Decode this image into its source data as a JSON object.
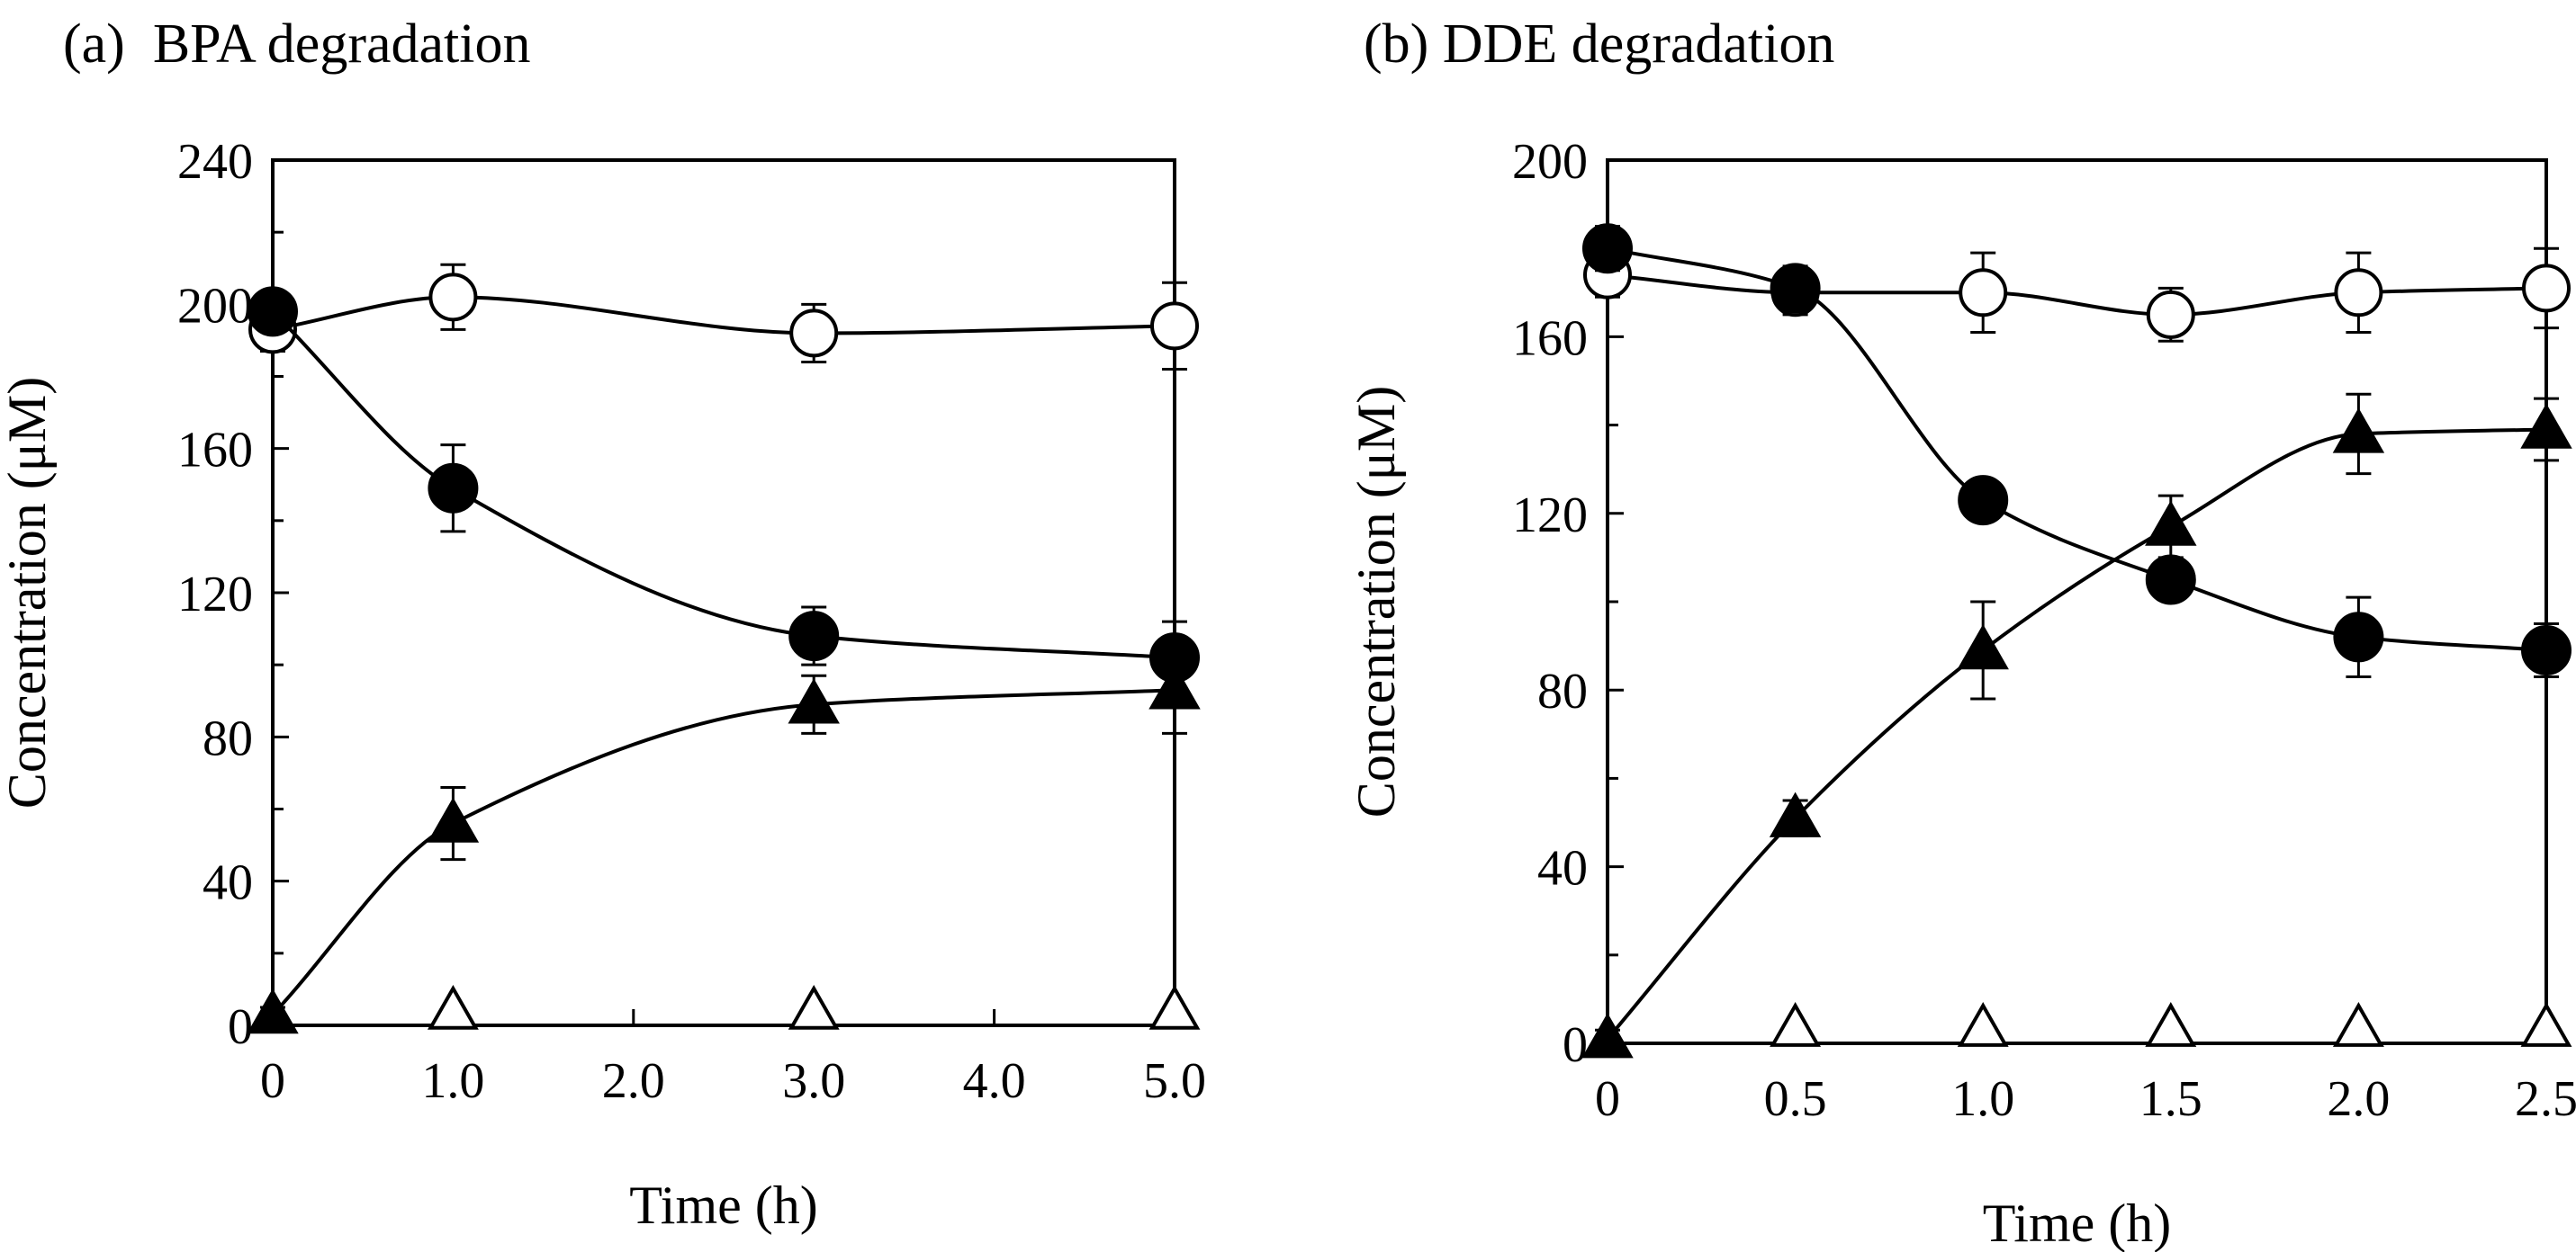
{
  "chart_data": [
    {
      "panel": "(a)",
      "title": "BPA degradation",
      "type": "line",
      "xlabel": "Time (h)",
      "ylabel": "Concentration (μM)",
      "xlim": [
        0,
        5
      ],
      "ylim": [
        0,
        240
      ],
      "xticks": [
        0,
        1,
        2,
        3,
        4,
        5
      ],
      "xtick_labels": [
        "0",
        "1.0",
        "2.0",
        "3.0",
        "4.0",
        "5.0"
      ],
      "yticks": [
        0,
        40,
        80,
        120,
        160,
        200,
        240
      ],
      "ytick_labels": [
        "0",
        "40",
        "80",
        "120",
        "160",
        "200",
        "240"
      ],
      "legend": "none",
      "series": [
        {
          "name": "open circle",
          "marker": "circle-open",
          "x": [
            0,
            1,
            3,
            5
          ],
          "y": [
            193,
            202,
            192,
            194
          ],
          "err": [
            6,
            9,
            8,
            12
          ]
        },
        {
          "name": "filled circle",
          "marker": "circle-filled",
          "x": [
            0,
            1,
            3,
            5
          ],
          "y": [
            198,
            149,
            108,
            102
          ],
          "err": [
            5,
            12,
            8,
            10
          ]
        },
        {
          "name": "filled triangle",
          "marker": "triangle-filled",
          "x": [
            0,
            1,
            3,
            5
          ],
          "y": [
            3,
            56,
            89,
            93
          ],
          "err": [
            2,
            10,
            8,
            12
          ]
        },
        {
          "name": "open triangle",
          "marker": "triangle-open",
          "x": [
            1,
            3,
            5
          ],
          "y": [
            1,
            1,
            1
          ],
          "err": [
            0,
            0,
            0
          ]
        }
      ]
    },
    {
      "panel": "(b)",
      "title": "DDE degradation",
      "type": "line",
      "xlabel": "Time (h)",
      "ylabel": "Concentration (μM)",
      "xlim": [
        0,
        2.5
      ],
      "ylim": [
        0,
        200
      ],
      "xticks": [
        0,
        0.5,
        1,
        1.5,
        2,
        2.5
      ],
      "xtick_labels": [
        "0",
        "0.5",
        "1.0",
        "1.5",
        "2.0",
        "2.5"
      ],
      "yticks": [
        0,
        40,
        80,
        120,
        160,
        200
      ],
      "ytick_labels": [
        "0",
        "40",
        "80",
        "120",
        "160",
        "200"
      ],
      "legend": "none",
      "series": [
        {
          "name": "open circle",
          "marker": "circle-open",
          "x": [
            0,
            0.5,
            1,
            1.5,
            2,
            2.5
          ],
          "y": [
            174,
            170,
            170,
            165,
            170,
            171
          ],
          "err": [
            5,
            5,
            9,
            6,
            9,
            9
          ]
        },
        {
          "name": "filled circle",
          "marker": "circle-filled",
          "x": [
            0,
            0.5,
            1,
            1.5,
            2,
            2.5
          ],
          "y": [
            180,
            171,
            123,
            105,
            92,
            89
          ],
          "err": [
            5,
            5,
            4,
            4,
            9,
            6
          ]
        },
        {
          "name": "filled triangle",
          "marker": "triangle-filled",
          "x": [
            0,
            0.5,
            1,
            1.5,
            2,
            2.5
          ],
          "y": [
            1,
            51,
            89,
            117,
            138,
            139
          ],
          "err": [
            2,
            4,
            11,
            7,
            9,
            7
          ]
        },
        {
          "name": "open triangle",
          "marker": "triangle-open",
          "x": [
            0.5,
            1,
            1.5,
            2,
            2.5
          ],
          "y": [
            1,
            1,
            1,
            1,
            1
          ],
          "err": [
            0,
            0,
            0,
            0,
            0
          ]
        }
      ]
    }
  ]
}
